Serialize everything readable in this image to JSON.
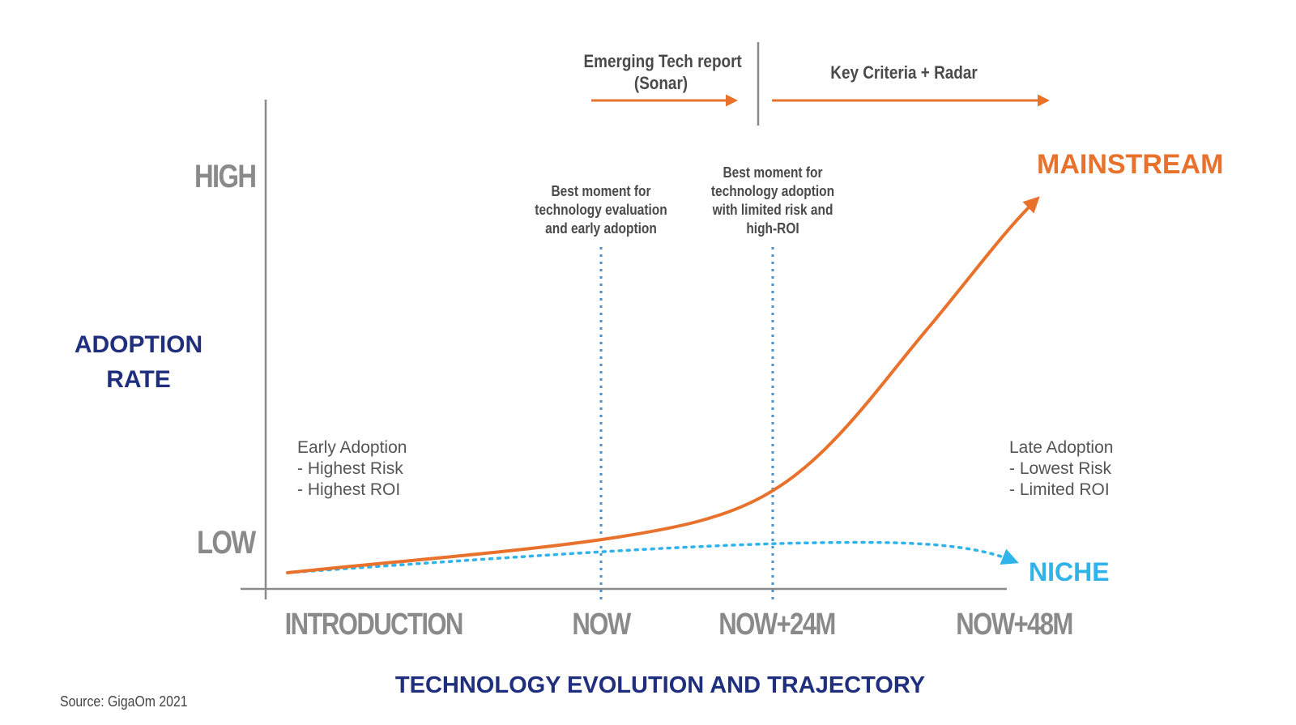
{
  "axes": {
    "y_label_line1": "ADOPTION",
    "y_label_line2": "RATE",
    "y_high": "HIGH",
    "y_low": "LOW",
    "x_label": "TECHNOLOGY EVOLUTION AND TRAJECTORY",
    "x_ticks": [
      "INTRODUCTION",
      "NOW",
      "NOW+24M",
      "NOW+48M"
    ]
  },
  "phases": {
    "sonar_line1": "Emerging Tech report",
    "sonar_line2": "(Sonar)",
    "radar": "Key Criteria + Radar"
  },
  "markers": {
    "now_note": [
      "Best moment for",
      "technology evaluation",
      "and early adoption"
    ],
    "now24_note": [
      "Best moment for",
      "technology adoption",
      "with limited risk and",
      "high-ROI"
    ]
  },
  "blocks": {
    "early": [
      "Early Adoption",
      "- Highest Risk",
      "- Highest ROI"
    ],
    "late": [
      "Late Adoption",
      "- Lowest Risk",
      "- Limited ROI"
    ]
  },
  "curves": {
    "mainstream_label": "MAINSTREAM",
    "niche_label": "NICHE"
  },
  "colors": {
    "orange": "#e8712c",
    "blue": "#2fb3ea",
    "navy": "#1f2f7d",
    "gray": "#8a8a8a"
  },
  "source": "Source: GigaOm 2021"
}
